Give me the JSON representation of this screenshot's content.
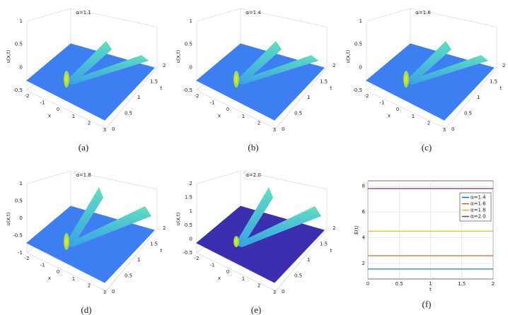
{
  "panels": [
    {
      "title": "α=1.1",
      "zlabel": "u(x,t)",
      "xlabel": "x",
      "tlabel": "t",
      "xticks": [
        "-2",
        "-1",
        "0",
        "1",
        "2",
        "3"
      ],
      "tticks": [
        "0",
        "0.5",
        "1",
        "1.5",
        "2"
      ],
      "zticks": [
        "1",
        "0.5",
        "0",
        "-0.5"
      ],
      "caption": "(a)"
    },
    {
      "title": "α=1.4",
      "zlabel": "u(x,t)",
      "xlabel": "x",
      "tlabel": "t",
      "xticks": [
        "-2",
        "-1",
        "0",
        "1",
        "2",
        "3"
      ],
      "tticks": [
        "0",
        "0.5",
        "1",
        "1.5",
        "2"
      ],
      "zticks": [
        "1",
        "0.5",
        "0",
        "-0.5"
      ],
      "caption": "(b)"
    },
    {
      "title": "α=1.6",
      "zlabel": "u(x,t)",
      "xlabel": "x",
      "tlabel": "t",
      "xticks": [
        "-2",
        "-1",
        "0",
        "1",
        "2",
        "3"
      ],
      "tticks": [
        "0",
        "0.5",
        "1",
        "1.5",
        "2"
      ],
      "zticks": [
        "1",
        "0.5",
        "0",
        "-0.5"
      ],
      "caption": "(c)"
    },
    {
      "title": "α=1.8",
      "zlabel": "u(x,t)",
      "xlabel": "x",
      "tlabel": "t",
      "xticks": [
        "-2",
        "-1",
        "0",
        "1",
        "2",
        "3"
      ],
      "tticks": [
        "0",
        "0.5",
        "1",
        "1.5",
        "2"
      ],
      "zticks": [
        "1",
        "0.5",
        "0",
        "-0.5",
        "-1"
      ],
      "caption": "(d)"
    },
    {
      "title": "α=2.0",
      "zlabel": "u(x,t)",
      "xlabel": "x",
      "tlabel": "t",
      "xticks": [
        "-2",
        "-1",
        "0",
        "1",
        "2",
        "3"
      ],
      "tticks": [
        "0",
        "0.5",
        "1",
        "1.5",
        "2"
      ],
      "zticks": [
        "2",
        "1.5",
        "1",
        "0.5",
        "0",
        "-0.5"
      ],
      "caption": "(e)"
    }
  ],
  "chart_data": {
    "type": "line",
    "caption": "(f)",
    "xlabel": "t",
    "ylabel": "E(t)",
    "x": [
      0,
      2
    ],
    "series": [
      {
        "name": "α=1.4",
        "color": "#0072bd",
        "values": [
          1.57,
          1.57
        ]
      },
      {
        "name": "α=1.6",
        "color": "#d95319",
        "values": [
          2.6,
          2.6
        ]
      },
      {
        "name": "α=1.8",
        "color": "#edb120",
        "values": [
          4.5,
          4.5
        ]
      },
      {
        "name": "α=2.0",
        "color": "#7e2f8e",
        "values": [
          7.8,
          7.8
        ]
      }
    ],
    "xlim": [
      0,
      2
    ],
    "xticks": [
      0,
      0.5,
      1,
      1.5,
      2
    ],
    "ylim": [
      0.8,
      8.4
    ],
    "yticks": [
      2,
      4,
      6,
      8
    ],
    "grid": true,
    "legend": "upper-right"
  }
}
